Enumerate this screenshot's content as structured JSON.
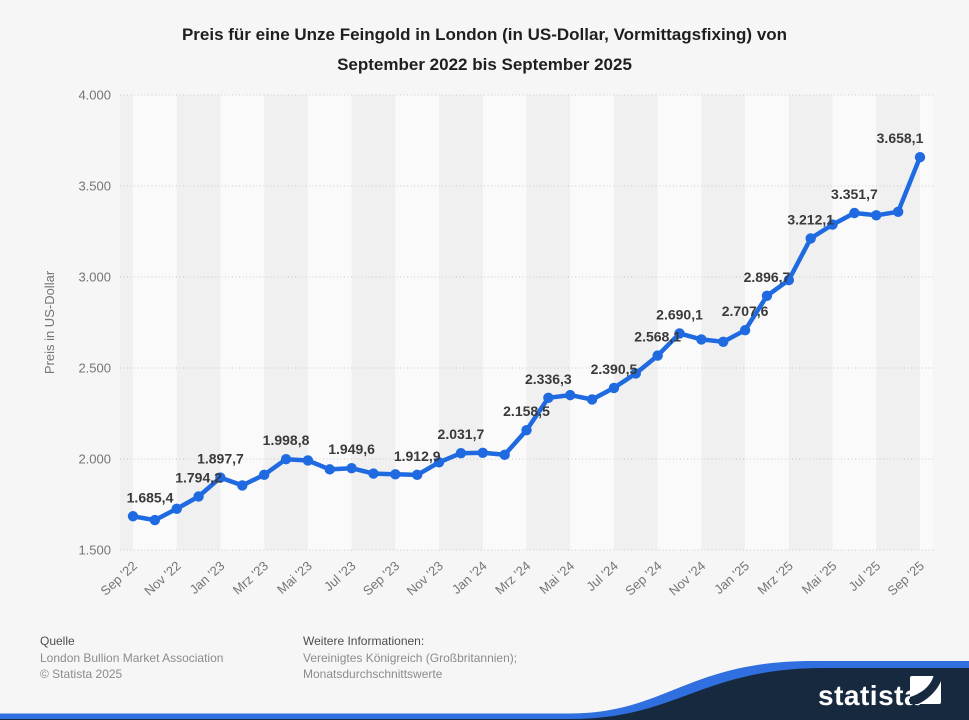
{
  "chart_data": {
    "type": "line",
    "title": "Preis für eine Unze Feingold in London (in US-Dollar, Vormittagsfixing) von September 2022 bis September 2025",
    "title_lines": [
      "Preis für eine Unze Feingold in London (in US-Dollar, Vormittagsfixing) von",
      "September 2022 bis September 2025"
    ],
    "ylabel": "Preis in US-Dollar",
    "xlabel": "",
    "ylim": [
      1500,
      4000
    ],
    "grid": true,
    "legend": "none",
    "line_color": "#1f6ae0",
    "yticks": [
      {
        "value": 1500,
        "label": "1.500"
      },
      {
        "value": 2000,
        "label": "2.000"
      },
      {
        "value": 2500,
        "label": "2.500"
      },
      {
        "value": 3000,
        "label": "3.000"
      },
      {
        "value": 3500,
        "label": "3.500"
      },
      {
        "value": 4000,
        "label": "4.000"
      }
    ],
    "series": [
      {
        "name": "Preis in US-Dollar",
        "points": [
          {
            "month": "Sep '22",
            "value": 1685.4,
            "data_label": "1.685,4",
            "tick": true
          },
          {
            "month": "Okt '22",
            "value": 1664.5,
            "tick": false
          },
          {
            "month": "Nov '22",
            "value": 1726.2,
            "tick": true
          },
          {
            "month": "Dez '22",
            "value": 1794.2,
            "data_label": "1.794,2",
            "tick": false
          },
          {
            "month": "Jan '23",
            "value": 1897.7,
            "data_label": "1.897,7",
            "tick": true
          },
          {
            "month": "Feb '23",
            "value": 1855.0,
            "tick": false
          },
          {
            "month": "Mrz '23",
            "value": 1913.0,
            "tick": true
          },
          {
            "month": "Apr '23",
            "value": 1998.8,
            "data_label": "1.998,8",
            "tick": false
          },
          {
            "month": "Mai '23",
            "value": 1992.0,
            "tick": true
          },
          {
            "month": "Jun '23",
            "value": 1943.0,
            "tick": false
          },
          {
            "month": "Jul '23",
            "value": 1949.6,
            "data_label": "1.949,6",
            "tick": true
          },
          {
            "month": "Aug '23",
            "value": 1920.0,
            "tick": false
          },
          {
            "month": "Sep '23",
            "value": 1916.0,
            "tick": true
          },
          {
            "month": "Okt '23",
            "value": 1912.9,
            "data_label": "1.912,9",
            "tick": false
          },
          {
            "month": "Nov '23",
            "value": 1982.0,
            "tick": true
          },
          {
            "month": "Dez '23",
            "value": 2031.7,
            "data_label": "2.031,7",
            "tick": false
          },
          {
            "month": "Jan '24",
            "value": 2034.0,
            "tick": true
          },
          {
            "month": "Feb '24",
            "value": 2023.0,
            "tick": false
          },
          {
            "month": "Mrz '24",
            "value": 2158.5,
            "data_label": "2.158,5",
            "tick": true
          },
          {
            "month": "Apr '24",
            "value": 2336.3,
            "data_label": "2.336,3",
            "tick": false
          },
          {
            "month": "Mai '24",
            "value": 2351.0,
            "tick": true
          },
          {
            "month": "Jun '24",
            "value": 2327.0,
            "tick": false
          },
          {
            "month": "Jul '24",
            "value": 2390.5,
            "data_label": "2.390,5",
            "tick": true
          },
          {
            "month": "Aug '24",
            "value": 2470.0,
            "tick": false
          },
          {
            "month": "Sep '24",
            "value": 2568.1,
            "data_label": "2.568,1",
            "tick": true
          },
          {
            "month": "Okt '24",
            "value": 2690.1,
            "data_label": "2.690,1",
            "tick": false
          },
          {
            "month": "Nov '24",
            "value": 2657.0,
            "tick": true
          },
          {
            "month": "Dez '24",
            "value": 2644.0,
            "tick": false
          },
          {
            "month": "Jan '25",
            "value": 2707.6,
            "data_label": "2.707,6",
            "tick": true
          },
          {
            "month": "Feb '25",
            "value": 2896.7,
            "data_label": "2.896,7",
            "tick": false
          },
          {
            "month": "Mrz '25",
            "value": 2983.0,
            "tick": true
          },
          {
            "month": "Apr '25",
            "value": 3212.1,
            "data_label": "3.212,1",
            "tick": false
          },
          {
            "month": "Mai '25",
            "value": 3288.0,
            "tick": true
          },
          {
            "month": "Jun '25",
            "value": 3351.7,
            "data_label": "3.351,7",
            "tick": false
          },
          {
            "month": "Jul '25",
            "value": 3339.0,
            "tick": true
          },
          {
            "month": "Aug '25",
            "value": 3358.0,
            "tick": false
          },
          {
            "month": "Sep '25",
            "value": 3658.1,
            "data_label": "3.658,1",
            "tick": true
          }
        ]
      }
    ],
    "colors": {
      "plot_background": "#fafafa",
      "band_dark": "#f0f0f0",
      "gridline": "#c9c9c9",
      "axis_text": "#757575",
      "data_label_text": "#3a3a3a"
    }
  },
  "footer": {
    "source_heading": "Quelle",
    "source": "London Bullion Market Association",
    "copyright": "© Statista 2025",
    "info_heading": "Weitere Informationen:",
    "info": "Vereinigtes Königreich (Großbritannien); Monatsdurchschnittswerte"
  },
  "branding": {
    "logo_text": "statista",
    "navy": "#17293f",
    "blue": "#2f6fdf"
  }
}
